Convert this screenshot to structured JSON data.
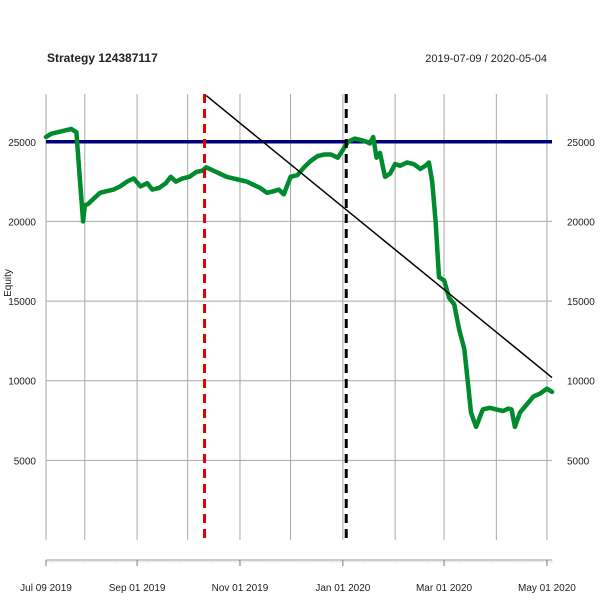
{
  "chart_data": {
    "type": "line",
    "title": "Strategy 124387117",
    "subtitle": "2019-07-09 / 2020-05-04",
    "ylabel": "Equity",
    "xlabel": "",
    "x_range": [
      "2019-07-09",
      "2020-05-04"
    ],
    "ylim": [
      0,
      28000
    ],
    "y_ticks": [
      5000,
      10000,
      15000,
      20000,
      25000
    ],
    "x_ticks": [
      {
        "date": "2019-07-09",
        "label": "Jul 09 2019"
      },
      {
        "date": "2019-09-01",
        "label": "Sep 01 2019"
      },
      {
        "date": "2019-11-01",
        "label": "Nov 01 2019"
      },
      {
        "date": "2020-01-01",
        "label": "Jan 01 2020"
      },
      {
        "date": "2020-03-01",
        "label": "Mar 01 2020"
      },
      {
        "date": "2020-05-01",
        "label": "May 01 2020"
      }
    ],
    "grid_dates": [
      "2019-07-09",
      "2019-08-01",
      "2019-09-01",
      "2019-10-01",
      "2019-11-01",
      "2019-12-01",
      "2020-01-01",
      "2020-02-01",
      "2020-03-01",
      "2020-04-01",
      "2020-05-01"
    ],
    "grid": true,
    "colors": {
      "equity": "#008a2e",
      "baseline": "#00007f",
      "trend": "#000000",
      "vline_red": "#dd0000",
      "vline_black": "#000000"
    },
    "baseline_value": 25000,
    "trend_line": {
      "x": [
        "2019-10-12",
        "2020-05-04"
      ],
      "y": [
        27900,
        10200
      ]
    },
    "vlines": [
      {
        "date": "2019-10-11",
        "color": "#dd0000"
      },
      {
        "date": "2020-01-03",
        "color": "#000000"
      }
    ],
    "series": [
      {
        "x": [
          "2019-07-09",
          "2019-07-12",
          "2019-07-16",
          "2019-07-20",
          "2019-07-24",
          "2019-07-27",
          "2019-07-29",
          "2019-07-31",
          "2019-08-01",
          "2019-08-03",
          "2019-08-06",
          "2019-08-10",
          "2019-08-14",
          "2019-08-18",
          "2019-08-22",
          "2019-08-26",
          "2019-08-30",
          "2019-09-03",
          "2019-09-07",
          "2019-09-10",
          "2019-09-14",
          "2019-09-18",
          "2019-09-21",
          "2019-09-24",
          "2019-09-28",
          "2019-10-02",
          "2019-10-06",
          "2019-10-10",
          "2019-10-12",
          "2019-10-16",
          "2019-10-20",
          "2019-10-24",
          "2019-10-28",
          "2019-11-01",
          "2019-11-05",
          "2019-11-09",
          "2019-11-13",
          "2019-11-17",
          "2019-11-21",
          "2019-11-24",
          "2019-11-27",
          "2019-12-01",
          "2019-12-05",
          "2019-12-09",
          "2019-12-13",
          "2019-12-17",
          "2019-12-21",
          "2019-12-25",
          "2019-12-29",
          "2020-01-01",
          "2020-01-04",
          "2020-01-08",
          "2020-01-12",
          "2020-01-15",
          "2020-01-17",
          "2020-01-19",
          "2020-01-21",
          "2020-01-23",
          "2020-01-26",
          "2020-01-29",
          "2020-02-01",
          "2020-02-04",
          "2020-02-08",
          "2020-02-12",
          "2020-02-16",
          "2020-02-19",
          "2020-02-21",
          "2020-02-23",
          "2020-02-25",
          "2020-02-27",
          "2020-03-01",
          "2020-03-04",
          "2020-03-07",
          "2020-03-10",
          "2020-03-13",
          "2020-03-15",
          "2020-03-17",
          "2020-03-20",
          "2020-03-24",
          "2020-03-28",
          "2020-04-01",
          "2020-04-05",
          "2020-04-08",
          "2020-04-10",
          "2020-04-12",
          "2020-04-15",
          "2020-04-19",
          "2020-04-23",
          "2020-04-27",
          "2020-05-01",
          "2020-05-04"
        ],
        "y": [
          25300,
          25500,
          25600,
          25700,
          25800,
          25600,
          22800,
          20000,
          21000,
          21100,
          21400,
          21800,
          21900,
          22000,
          22200,
          22500,
          22700,
          22200,
          22400,
          22000,
          22100,
          22400,
          22800,
          22500,
          22700,
          22800,
          23100,
          23200,
          23400,
          23200,
          23000,
          22800,
          22700,
          22600,
          22500,
          22300,
          22100,
          21800,
          21900,
          22000,
          21700,
          22800,
          22900,
          23400,
          23800,
          24100,
          24200,
          24200,
          24000,
          24500,
          25000,
          25200,
          25100,
          25000,
          24900,
          25300,
          24000,
          24300,
          22800,
          23000,
          23600,
          23500,
          23700,
          23600,
          23300,
          23500,
          23700,
          22500,
          20000,
          16500,
          16300,
          15200,
          14800,
          13200,
          12000,
          10000,
          8000,
          7100,
          8200,
          8300,
          8200,
          8100,
          8250,
          8200,
          7100,
          8000,
          8500,
          9000,
          9200,
          9500,
          9300
        ]
      }
    ]
  }
}
